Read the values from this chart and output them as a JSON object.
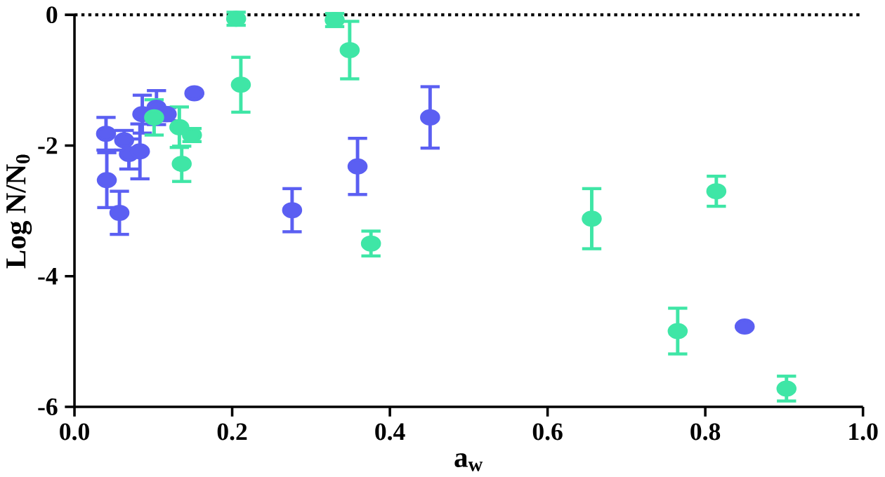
{
  "chart_data": {
    "type": "scatter",
    "xlabel": "a$_{w}$",
    "ylabel": "Log N/N$_{0}$",
    "xlim": [
      0,
      1
    ],
    "ylim": [
      -6,
      0
    ],
    "xticks": [
      {
        "value": 0,
        "label": "0.0"
      },
      0.2,
      0.4,
      0.6,
      0.8,
      {
        "value": 1,
        "label": "1.0"
      }
    ],
    "yticks": [
      -6,
      -4,
      -2,
      0
    ],
    "marker": "circle",
    "ref_lines": [
      {
        "axis": "y",
        "value": 0,
        "line_style": "dotted",
        "color": "#000000"
      }
    ],
    "series": [
      {
        "color": "#5b5ff2",
        "x": [
          0.04,
          0.041,
          0.057,
          0.063,
          0.069,
          0.083,
          0.086,
          0.104,
          0.117,
          0.152,
          0.276,
          0.359,
          0.451,
          0.85
        ],
        "values": [
          -1.82,
          -2.53,
          -3.03,
          -1.92,
          -2.13,
          -2.09,
          -1.52,
          -1.42,
          -1.52,
          -1.2,
          -2.99,
          -2.32,
          -1.57,
          -4.77
        ],
        "errors": [
          0.25,
          0.42,
          0.33,
          0.15,
          0.23,
          0.42,
          0.29,
          0.26,
          0.1,
          null,
          0.33,
          0.43,
          0.47,
          null
        ]
      },
      {
        "color": "#3fe6a6",
        "x": [
          0.101,
          0.133,
          0.136,
          0.149,
          0.205,
          0.211,
          0.33,
          0.349,
          0.376,
          0.656,
          0.765,
          0.814,
          0.903
        ],
        "values": [
          -1.57,
          -1.72,
          -2.28,
          -1.84,
          -0.06,
          -1.07,
          -0.08,
          -0.54,
          -3.5,
          -3.12,
          -4.84,
          -2.7,
          -5.72
        ],
        "errors": [
          0.27,
          0.31,
          0.27,
          0.1,
          0.1,
          0.42,
          0.1,
          0.44,
          0.19,
          0.46,
          0.35,
          0.23,
          0.19
        ]
      }
    ]
  }
}
